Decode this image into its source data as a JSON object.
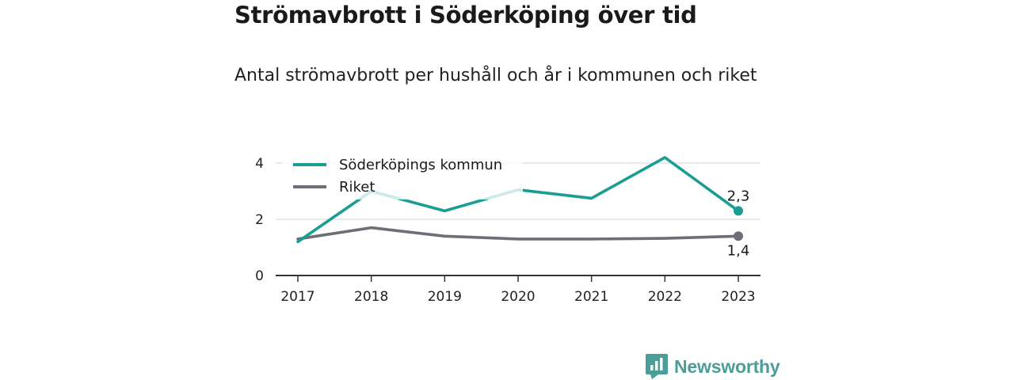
{
  "title": "Strömavbrott i Söderköping över tid",
  "subtitle": "Antal strömavbrott per hushåll och år i kommunen och riket",
  "brand": "Newsworthy",
  "chart_data": {
    "type": "line",
    "x": [
      "2017",
      "2018",
      "2019",
      "2020",
      "2021",
      "2022",
      "2023"
    ],
    "series": [
      {
        "name": "Söderköpings kommun",
        "color": "#1a9e93",
        "values": [
          1.2,
          3.0,
          2.3,
          3.05,
          2.75,
          4.2,
          2.3
        ]
      },
      {
        "name": "Riket",
        "color": "#6e6e76",
        "values": [
          1.3,
          1.7,
          1.4,
          1.3,
          1.3,
          1.32,
          1.4
        ]
      }
    ],
    "yticks": [
      0,
      2,
      4
    ],
    "ylim": [
      0,
      4.5
    ],
    "end_labels": [
      "2,3",
      "1,4"
    ],
    "legend_position": "top-left",
    "grid": true
  }
}
